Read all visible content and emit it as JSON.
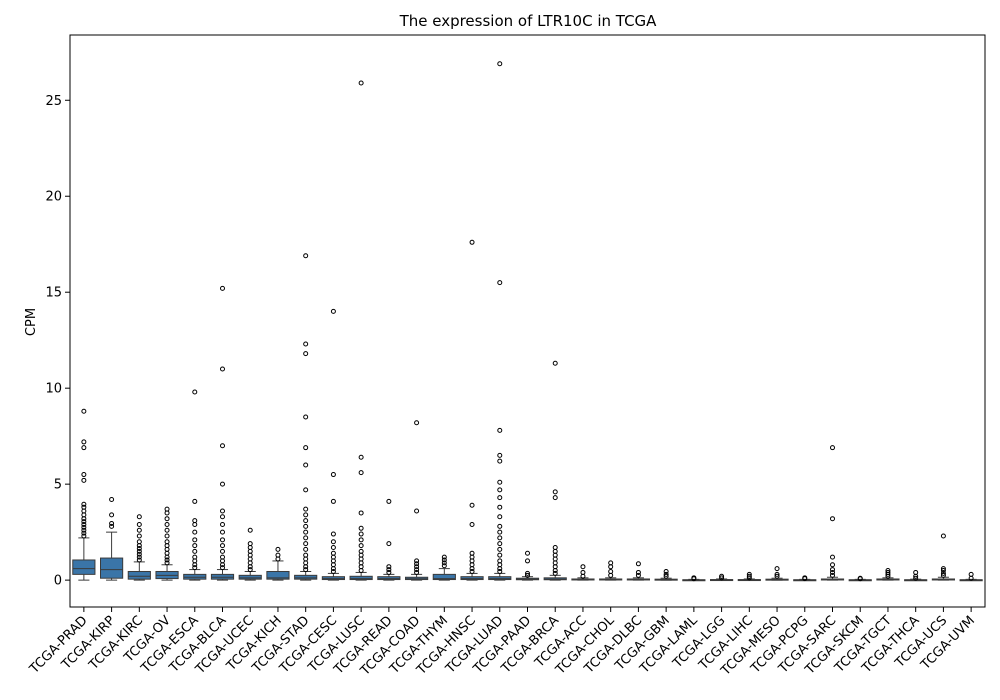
{
  "chart_data": {
    "type": "box",
    "title": "The expression of LTR10C in TCGA",
    "xlabel": "",
    "ylabel": "CPM",
    "ylim": [
      -1.4,
      28.4
    ],
    "yticks": [
      0,
      5,
      10,
      15,
      20,
      25
    ],
    "grid": false,
    "box_color": "#3a75a8",
    "categories": [
      "TCGA-PRAD",
      "TCGA-KIRP",
      "TCGA-KIRC",
      "TCGA-OV",
      "TCGA-ESCA",
      "TCGA-BLCA",
      "TCGA-UCEC",
      "TCGA-KICH",
      "TCGA-STAD",
      "TCGA-CESC",
      "TCGA-LUSC",
      "TCGA-READ",
      "TCGA-COAD",
      "TCGA-THYM",
      "TCGA-HNSC",
      "TCGA-LUAD",
      "TCGA-PAAD",
      "TCGA-BRCA",
      "TCGA-ACC",
      "TCGA-CHOL",
      "TCGA-DLBC",
      "TCGA-GBM",
      "TCGA-LAML",
      "TCGA-LGG",
      "TCGA-LIHC",
      "TCGA-MESO",
      "TCGA-PCPG",
      "TCGA-SARC",
      "TCGA-SKCM",
      "TCGA-TGCT",
      "TCGA-THCA",
      "TCGA-UCS",
      "TCGA-UVM"
    ],
    "boxes": [
      {
        "whislo": 0.0,
        "q1": 0.3,
        "med": 0.6,
        "q3": 1.05,
        "whishi": 2.2,
        "fliers": [
          2.3,
          2.45,
          2.6,
          2.75,
          2.9,
          3.05,
          3.2,
          3.4,
          3.6,
          3.8,
          3.95,
          5.2,
          5.5,
          6.9,
          7.2,
          8.8
        ]
      },
      {
        "whislo": 0.0,
        "q1": 0.1,
        "med": 0.55,
        "q3": 1.15,
        "whishi": 2.5,
        "fliers": [
          2.8,
          2.95,
          3.4,
          4.2
        ]
      },
      {
        "whislo": 0.0,
        "q1": 0.05,
        "med": 0.2,
        "q3": 0.45,
        "whishi": 0.95,
        "fliers": [
          1.05,
          1.2,
          1.35,
          1.5,
          1.65,
          1.8,
          2.0,
          2.3,
          2.6,
          2.9,
          3.3
        ]
      },
      {
        "whislo": 0.0,
        "q1": 0.08,
        "med": 0.25,
        "q3": 0.45,
        "whishi": 0.8,
        "fliers": [
          0.9,
          1.05,
          1.2,
          1.4,
          1.6,
          1.8,
          2.0,
          2.3,
          2.6,
          2.9,
          3.2,
          3.5,
          3.7
        ]
      },
      {
        "whislo": 0.0,
        "q1": 0.05,
        "med": 0.15,
        "q3": 0.3,
        "whishi": 0.55,
        "fliers": [
          0.65,
          0.8,
          1.0,
          1.2,
          1.5,
          1.8,
          2.1,
          2.5,
          2.9,
          3.1,
          4.1,
          9.8
        ]
      },
      {
        "whislo": 0.0,
        "q1": 0.05,
        "med": 0.15,
        "q3": 0.3,
        "whishi": 0.55,
        "fliers": [
          0.65,
          0.8,
          1.0,
          1.2,
          1.5,
          1.8,
          2.1,
          2.5,
          2.9,
          3.3,
          3.6,
          5.0,
          7.0,
          11.0,
          15.2
        ]
      },
      {
        "whislo": 0.0,
        "q1": 0.05,
        "med": 0.12,
        "q3": 0.25,
        "whishi": 0.45,
        "fliers": [
          0.55,
          0.7,
          0.9,
          1.1,
          1.3,
          1.5,
          1.7,
          1.9,
          2.6
        ]
      },
      {
        "whislo": 0.0,
        "q1": 0.05,
        "med": 0.12,
        "q3": 0.45,
        "whishi": 1.0,
        "fliers": [
          1.1,
          1.3,
          1.6
        ]
      },
      {
        "whislo": 0.0,
        "q1": 0.05,
        "med": 0.12,
        "q3": 0.25,
        "whishi": 0.45,
        "fliers": [
          0.55,
          0.7,
          0.9,
          1.1,
          1.3,
          1.6,
          1.9,
          2.2,
          2.5,
          2.8,
          3.1,
          3.4,
          3.7,
          4.7,
          6.0,
          6.9,
          8.5,
          11.8,
          12.3,
          16.9
        ]
      },
      {
        "whislo": 0.0,
        "q1": 0.03,
        "med": 0.08,
        "q3": 0.18,
        "whishi": 0.35,
        "fliers": [
          0.45,
          0.6,
          0.8,
          1.0,
          1.2,
          1.4,
          1.7,
          2.0,
          2.4,
          4.1,
          5.5,
          14.0
        ]
      },
      {
        "whislo": 0.0,
        "q1": 0.03,
        "med": 0.08,
        "q3": 0.2,
        "whishi": 0.4,
        "fliers": [
          0.5,
          0.7,
          0.9,
          1.1,
          1.3,
          1.5,
          1.8,
          2.1,
          2.4,
          2.7,
          3.5,
          5.6,
          6.4,
          25.9
        ]
      },
      {
        "whislo": 0.0,
        "q1": 0.03,
        "med": 0.08,
        "q3": 0.18,
        "whishi": 0.3,
        "fliers": [
          0.4,
          0.55,
          0.7,
          1.9,
          4.1
        ]
      },
      {
        "whislo": 0.0,
        "q1": 0.03,
        "med": 0.07,
        "q3": 0.15,
        "whishi": 0.3,
        "fliers": [
          0.4,
          0.55,
          0.7,
          0.85,
          1.0,
          3.6,
          8.2
        ]
      },
      {
        "whislo": 0.0,
        "q1": 0.03,
        "med": 0.08,
        "q3": 0.3,
        "whishi": 0.6,
        "fliers": [
          0.75,
          0.9,
          1.05,
          1.2
        ]
      },
      {
        "whislo": 0.0,
        "q1": 0.03,
        "med": 0.08,
        "q3": 0.18,
        "whishi": 0.35,
        "fliers": [
          0.45,
          0.6,
          0.8,
          1.0,
          1.2,
          1.4,
          2.9,
          3.9,
          17.6
        ]
      },
      {
        "whislo": 0.0,
        "q1": 0.03,
        "med": 0.08,
        "q3": 0.18,
        "whishi": 0.35,
        "fliers": [
          0.45,
          0.6,
          0.8,
          1.0,
          1.3,
          1.6,
          1.9,
          2.2,
          2.5,
          2.8,
          3.3,
          3.8,
          4.3,
          4.7,
          5.1,
          6.2,
          6.5,
          7.8,
          15.5,
          26.9
        ]
      },
      {
        "whislo": 0.0,
        "q1": 0.02,
        "med": 0.05,
        "q3": 0.1,
        "whishi": 0.18,
        "fliers": [
          0.25,
          0.35,
          1.0,
          1.4
        ]
      },
      {
        "whislo": 0.0,
        "q1": 0.02,
        "med": 0.05,
        "q3": 0.12,
        "whishi": 0.25,
        "fliers": [
          0.35,
          0.5,
          0.7,
          0.9,
          1.1,
          1.3,
          1.5,
          1.7,
          4.3,
          4.6,
          11.3
        ]
      },
      {
        "whislo": 0.0,
        "q1": 0.01,
        "med": 0.03,
        "q3": 0.06,
        "whishi": 0.12,
        "fliers": [
          0.2,
          0.4,
          0.7
        ]
      },
      {
        "whislo": 0.0,
        "q1": 0.01,
        "med": 0.03,
        "q3": 0.06,
        "whishi": 0.12,
        "fliers": [
          0.25,
          0.45,
          0.7,
          0.9
        ]
      },
      {
        "whislo": 0.0,
        "q1": 0.01,
        "med": 0.03,
        "q3": 0.06,
        "whishi": 0.12,
        "fliers": [
          0.25,
          0.4,
          0.85
        ]
      },
      {
        "whislo": 0.0,
        "q1": 0.01,
        "med": 0.02,
        "q3": 0.05,
        "whishi": 0.1,
        "fliers": [
          0.2,
          0.3,
          0.45
        ]
      },
      {
        "whislo": 0.0,
        "q1": 0.0,
        "med": 0.01,
        "q3": 0.02,
        "whishi": 0.04,
        "fliers": [
          0.07,
          0.12
        ]
      },
      {
        "whislo": 0.0,
        "q1": 0.0,
        "med": 0.01,
        "q3": 0.03,
        "whishi": 0.06,
        "fliers": [
          0.12,
          0.2
        ]
      },
      {
        "whislo": 0.0,
        "q1": 0.0,
        "med": 0.01,
        "q3": 0.03,
        "whishi": 0.06,
        "fliers": [
          0.12,
          0.2,
          0.3
        ]
      },
      {
        "whislo": 0.0,
        "q1": 0.0,
        "med": 0.02,
        "q3": 0.05,
        "whishi": 0.1,
        "fliers": [
          0.2,
          0.3,
          0.6
        ]
      },
      {
        "whislo": 0.0,
        "q1": 0.0,
        "med": 0.01,
        "q3": 0.02,
        "whishi": 0.04,
        "fliers": [
          0.08,
          0.12
        ]
      },
      {
        "whislo": 0.0,
        "q1": 0.01,
        "med": 0.03,
        "q3": 0.06,
        "whishi": 0.15,
        "fliers": [
          0.25,
          0.4,
          0.55,
          0.8,
          1.2,
          3.2,
          6.9
        ]
      },
      {
        "whislo": 0.0,
        "q1": 0.0,
        "med": 0.01,
        "q3": 0.02,
        "whishi": 0.04,
        "fliers": [
          0.07,
          0.1
        ]
      },
      {
        "whislo": 0.0,
        "q1": 0.01,
        "med": 0.03,
        "q3": 0.06,
        "whishi": 0.12,
        "fliers": [
          0.2,
          0.3,
          0.4,
          0.5
        ]
      },
      {
        "whislo": 0.0,
        "q1": 0.0,
        "med": 0.01,
        "q3": 0.02,
        "whishi": 0.05,
        "fliers": [
          0.1,
          0.2,
          0.4
        ]
      },
      {
        "whislo": 0.0,
        "q1": 0.01,
        "med": 0.03,
        "q3": 0.06,
        "whishi": 0.15,
        "fliers": [
          0.25,
          0.35,
          0.5,
          0.6,
          2.3
        ]
      },
      {
        "whislo": 0.0,
        "q1": 0.0,
        "med": 0.01,
        "q3": 0.02,
        "whishi": 0.04,
        "fliers": [
          0.1,
          0.3
        ]
      }
    ]
  }
}
